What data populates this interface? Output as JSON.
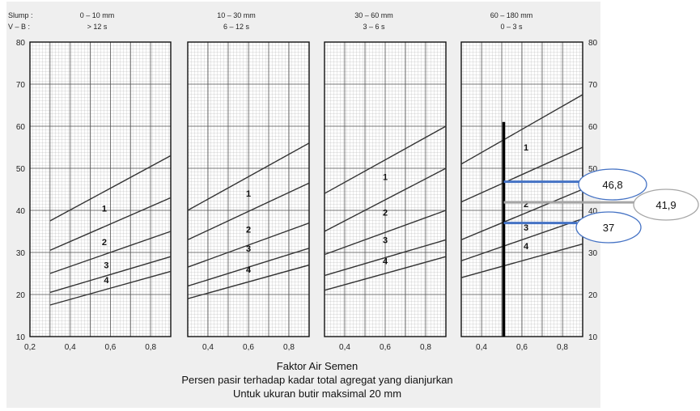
{
  "header": {
    "slump_label": "Slump :",
    "vb_label": "V – B   :"
  },
  "panels": [
    {
      "slump": "0 – 10 mm",
      "vb": "> 12 s"
    },
    {
      "slump": "10 – 30 mm",
      "vb": "6 – 12 s"
    },
    {
      "slump": "30 – 60 mm",
      "vb": "3 – 6 s"
    },
    {
      "slump": "60 – 180 mm",
      "vb": "0 – 3 s"
    }
  ],
  "footer": {
    "xlabel": "Faktor Air Semen",
    "line2": "Persen pasir terhadap kadar total agregat yang dianjurkan",
    "line3": "Untuk ukuran butir maksimal 20 mm"
  },
  "chart_data": {
    "type": "line",
    "xlabel": "Faktor Air Semen",
    "ylim": [
      10,
      80
    ],
    "y_ticks": [
      "10",
      "20",
      "30",
      "40",
      "50",
      "60",
      "70",
      "80"
    ],
    "x_ticks_first_panel": [
      "0,2",
      "0,4",
      "0,6",
      "0,8"
    ],
    "x_ticks_other_panels": [
      "0,4",
      "0,6",
      "0,8"
    ],
    "grid": true,
    "curve_labels": [
      "1",
      "2",
      "3",
      "4"
    ],
    "panels": [
      {
        "xlim": [
          0.2,
          0.9
        ],
        "series": [
          {
            "name": "1",
            "x": [
              0.3,
              0.9
            ],
            "y": [
              37.5,
              53.0
            ]
          },
          {
            "name": "2",
            "x": [
              0.3,
              0.9
            ],
            "y": [
              30.5,
              43.0
            ]
          },
          {
            "name": "3",
            "x": [
              0.3,
              0.9
            ],
            "y": [
              25.0,
              35.0
            ]
          },
          {
            "name": "4",
            "x": [
              0.3,
              0.9
            ],
            "y": [
              20.5,
              29.0
            ]
          },
          {
            "name": "",
            "x": [
              0.3,
              0.9
            ],
            "y": [
              17.5,
              25.5
            ]
          }
        ],
        "label_positions": [
          [
            0.57,
            40.5
          ],
          [
            0.57,
            32.5
          ],
          [
            0.58,
            27.0
          ],
          [
            0.58,
            23.5
          ]
        ]
      },
      {
        "xlim": [
          0.3,
          0.9
        ],
        "series": [
          {
            "name": "1",
            "x": [
              0.3,
              0.9
            ],
            "y": [
              40.0,
              56.0
            ]
          },
          {
            "name": "2",
            "x": [
              0.3,
              0.9
            ],
            "y": [
              33.0,
              46.5
            ]
          },
          {
            "name": "3",
            "x": [
              0.3,
              0.9
            ],
            "y": [
              26.5,
              37.0
            ]
          },
          {
            "name": "4",
            "x": [
              0.3,
              0.9
            ],
            "y": [
              22.0,
              31.0
            ]
          },
          {
            "name": "",
            "x": [
              0.3,
              0.9
            ],
            "y": [
              19.0,
              27.0
            ]
          }
        ],
        "label_positions": [
          [
            0.6,
            44.0
          ],
          [
            0.6,
            35.5
          ],
          [
            0.6,
            31.0
          ],
          [
            0.6,
            26.0
          ]
        ]
      },
      {
        "xlim": [
          0.3,
          0.9
        ],
        "series": [
          {
            "name": "1",
            "x": [
              0.3,
              0.9
            ],
            "y": [
              44.0,
              60.0
            ]
          },
          {
            "name": "2",
            "x": [
              0.3,
              0.9
            ],
            "y": [
              35.0,
              50.0
            ]
          },
          {
            "name": "3",
            "x": [
              0.3,
              0.9
            ],
            "y": [
              29.5,
              40.0
            ]
          },
          {
            "name": "4",
            "x": [
              0.3,
              0.9
            ],
            "y": [
              24.5,
              33.0
            ]
          },
          {
            "name": "",
            "x": [
              0.3,
              0.9
            ],
            "y": [
              21.0,
              29.0
            ]
          }
        ],
        "label_positions": [
          [
            0.6,
            48.0
          ],
          [
            0.6,
            39.5
          ],
          [
            0.6,
            33.0
          ],
          [
            0.6,
            28.0
          ]
        ]
      },
      {
        "xlim": [
          0.3,
          0.9
        ],
        "series": [
          {
            "name": "1",
            "x": [
              0.3,
              0.9
            ],
            "y": [
              51.0,
              67.5
            ]
          },
          {
            "name": "2",
            "x": [
              0.3,
              0.9
            ],
            "y": [
              42.0,
              55.0
            ]
          },
          {
            "name": "3",
            "x": [
              0.3,
              0.9
            ],
            "y": [
              33.0,
              45.0
            ]
          },
          {
            "name": "4",
            "x": [
              0.3,
              0.9
            ],
            "y": [
              28.0,
              38.0
            ]
          },
          {
            "name": "",
            "x": [
              0.3,
              0.9
            ],
            "y": [
              24.0,
              32.0
            ]
          }
        ],
        "label_positions": [
          [
            0.62,
            55.0
          ],
          [
            0.62,
            41.5
          ],
          [
            0.62,
            36.0
          ],
          [
            0.62,
            31.5
          ]
        ]
      }
    ],
    "annotations": {
      "vertical_line": {
        "panel": 4,
        "x": 0.51,
        "y_from": 10,
        "y_to": 61
      },
      "callouts": [
        {
          "label": "46,8",
          "y": 46.8,
          "color": "#4472c4"
        },
        {
          "label": "41,9",
          "y": 41.9,
          "color": "#a6a6a6"
        },
        {
          "label": "37",
          "y": 37.0,
          "color": "#4472c4"
        }
      ]
    }
  }
}
